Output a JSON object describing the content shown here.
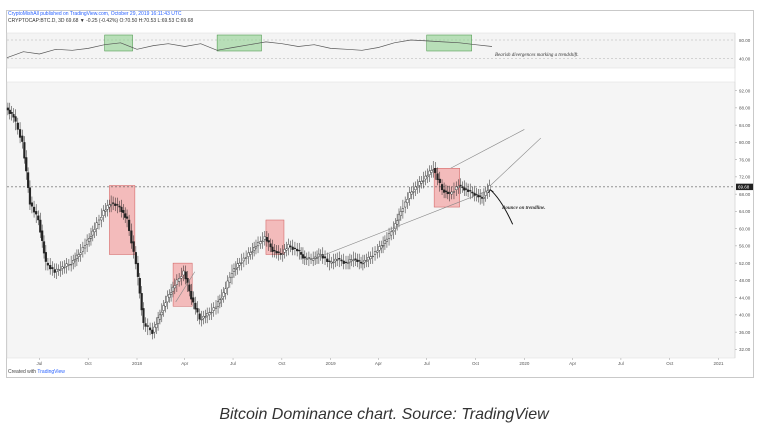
{
  "header": {
    "source_line": "CryptoMishAll published on TradingView.com, October 29, 2019 16:11:43 UTC",
    "symbol_line": "CRYPTOCAP:BTC.D, 3D 69.68 ▼ -0.25 (-0.42%) O:70.50 H:70.53 L:69.53 C:69.68"
  },
  "footer": {
    "created_with": "Created with",
    "brand": "TradingView"
  },
  "caption": "Bitcoin Dominance chart. Source: TradingView",
  "chart_data": [
    {
      "type": "line",
      "panel": "indicator",
      "annotation": "Bearish divergences marking a trendshift.",
      "yticks": [
        80.0,
        40.0
      ],
      "ylim": [
        20,
        95
      ],
      "x": [
        "2017-05",
        "2017-06",
        "2017-07",
        "2017-08",
        "2017-09",
        "2017-10",
        "2017-11",
        "2017-12",
        "2018-01",
        "2018-02",
        "2018-03",
        "2018-04",
        "2018-05",
        "2018-06",
        "2018-07",
        "2018-08",
        "2018-09",
        "2018-10",
        "2018-11",
        "2018-12",
        "2019-01",
        "2019-02",
        "2019-03",
        "2019-04",
        "2019-05",
        "2019-06",
        "2019-07",
        "2019-08",
        "2019-09",
        "2019-10",
        "2019-11"
      ],
      "values": [
        42,
        55,
        50,
        60,
        58,
        62,
        70,
        74,
        60,
        68,
        72,
        66,
        72,
        58,
        64,
        70,
        76,
        72,
        66,
        70,
        62,
        60,
        58,
        64,
        74,
        80,
        78,
        76,
        74,
        70,
        66
      ],
      "highlight_boxes": [
        [
          "2017-11",
          "2017-12"
        ],
        [
          "2018-06",
          "2018-08"
        ],
        [
          "2019-07",
          "2019-09"
        ]
      ]
    },
    {
      "type": "candlestick",
      "panel": "price",
      "ylim": [
        30,
        94
      ],
      "yticks": [
        92.0,
        88.0,
        84.0,
        80.0,
        76.0,
        72.0,
        68.0,
        64.0,
        60.0,
        56.0,
        52.0,
        48.0,
        44.0,
        40.0,
        36.0,
        32.0
      ],
      "current_value_label": "69.68",
      "current_value": 69.68,
      "xticks": [
        "Jul",
        "Oct",
        "2018",
        "Apr",
        "Jul",
        "Oct",
        "2019",
        "Apr",
        "Jul",
        "Oct",
        "2020",
        "Apr",
        "Jul",
        "Oct",
        "2021"
      ],
      "x": [
        "2017-05-01",
        "2017-05-15",
        "2017-06-01",
        "2017-06-15",
        "2017-07-01",
        "2017-07-15",
        "2017-08-01",
        "2017-08-15",
        "2017-09-01",
        "2017-09-15",
        "2017-10-01",
        "2017-10-15",
        "2017-11-01",
        "2017-11-15",
        "2017-12-01",
        "2017-12-15",
        "2018-01-01",
        "2018-01-15",
        "2018-02-01",
        "2018-02-15",
        "2018-03-01",
        "2018-03-15",
        "2018-04-01",
        "2018-04-15",
        "2018-05-01",
        "2018-05-15",
        "2018-06-01",
        "2018-06-15",
        "2018-07-01",
        "2018-07-15",
        "2018-08-01",
        "2018-08-15",
        "2018-09-01",
        "2018-09-15",
        "2018-10-01",
        "2018-10-15",
        "2018-11-01",
        "2018-11-15",
        "2018-12-01",
        "2018-12-15",
        "2019-01-01",
        "2019-01-15",
        "2019-02-01",
        "2019-02-15",
        "2019-03-01",
        "2019-03-15",
        "2019-04-01",
        "2019-04-15",
        "2019-05-01",
        "2019-05-15",
        "2019-06-01",
        "2019-06-15",
        "2019-07-01",
        "2019-07-15",
        "2019-08-01",
        "2019-08-15",
        "2019-09-01",
        "2019-09-15",
        "2019-10-01",
        "2019-10-15",
        "2019-10-29"
      ],
      "values": [
        88,
        86,
        80,
        66,
        62,
        52,
        50,
        51,
        52,
        54,
        57,
        60,
        64,
        66,
        65,
        62,
        52,
        38,
        36,
        40,
        44,
        47,
        50,
        44,
        39,
        40,
        42,
        45,
        50,
        52,
        54,
        56,
        58,
        55,
        54,
        56,
        55,
        53,
        53,
        54,
        52,
        53,
        52,
        53,
        52,
        53,
        55,
        57,
        60,
        64,
        68,
        70,
        72,
        74,
        69,
        68,
        70,
        69,
        68,
        67,
        69.68
      ],
      "highlight_boxes": [
        [
          "2017-11-10",
          "2017-12-28",
          54,
          70
        ],
        [
          "2018-03-10",
          "2018-04-15",
          42,
          52
        ],
        [
          "2018-09-01",
          "2018-10-05",
          54,
          62
        ],
        [
          "2019-07-15",
          "2019-09-01",
          65,
          74
        ]
      ],
      "trendlines": [
        {
          "from": [
            "2018-12-01",
            53
          ],
          "to": [
            "2019-10-29",
            69
          ]
        },
        {
          "from": [
            "2019-10-29",
            70
          ],
          "to": [
            "2020-02-01",
            81
          ]
        },
        {
          "from": [
            "2019-08-15",
            74
          ],
          "to": [
            "2020-01-01",
            83
          ]
        },
        {
          "from": [
            "2018-03-15",
            43
          ],
          "to": [
            "2018-04-20",
            50
          ]
        }
      ],
      "arrow": {
        "from": [
          "2019-10-29",
          69
        ],
        "to": [
          "2019-12-10",
          61
        ]
      },
      "annotation": "Bounce on trendline."
    }
  ]
}
